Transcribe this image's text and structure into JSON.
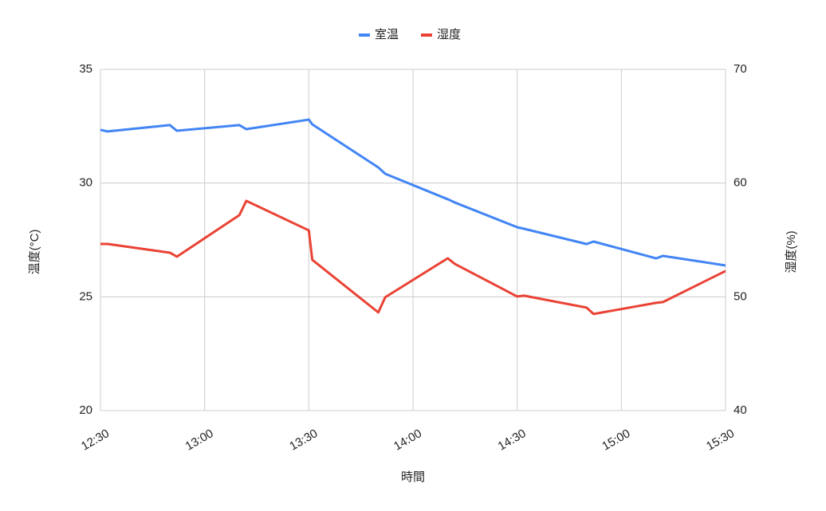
{
  "chart_data": {
    "type": "line",
    "x_label": "時間",
    "y_label": "温度(°C)",
    "y2_label": "湿度(%)",
    "x": [
      "12:30",
      "12:32",
      "12:50",
      "12:52",
      "13:10",
      "13:12",
      "13:30",
      "13:31",
      "13:50",
      "13:52",
      "14:10",
      "14:12",
      "14:30",
      "14:32",
      "14:50",
      "14:52",
      "15:10",
      "15:12",
      "15:30"
    ],
    "xlim": [
      "12:30",
      "15:30"
    ],
    "xticks": [
      "12:30",
      "13:00",
      "13:30",
      "14:00",
      "14:30",
      "15:00",
      "15:30"
    ],
    "ylim": [
      20,
      35
    ],
    "yticks": [
      20,
      25,
      30,
      35
    ],
    "y2lim": [
      40,
      70
    ],
    "y2ticks": [
      40,
      50,
      60,
      70
    ],
    "grid": true,
    "legend": "top",
    "series": [
      {
        "name": "室温",
        "color": "#4285f4",
        "axis": "y",
        "values": [
          32.34,
          32.27,
          32.55,
          32.3,
          32.55,
          32.37,
          32.79,
          32.58,
          30.69,
          30.41,
          29.29,
          29.15,
          28.06,
          27.99,
          27.32,
          27.43,
          26.69,
          26.8,
          26.38
        ]
      },
      {
        "name": "湿度",
        "color": "#ea4335",
        "axis": "y2",
        "values": [
          54.65,
          54.65,
          53.88,
          53.53,
          57.18,
          58.44,
          55.84,
          53.25,
          48.63,
          49.96,
          53.39,
          52.9,
          50.03,
          50.1,
          49.05,
          48.49,
          49.47,
          49.54,
          52.27
        ]
      }
    ]
  }
}
